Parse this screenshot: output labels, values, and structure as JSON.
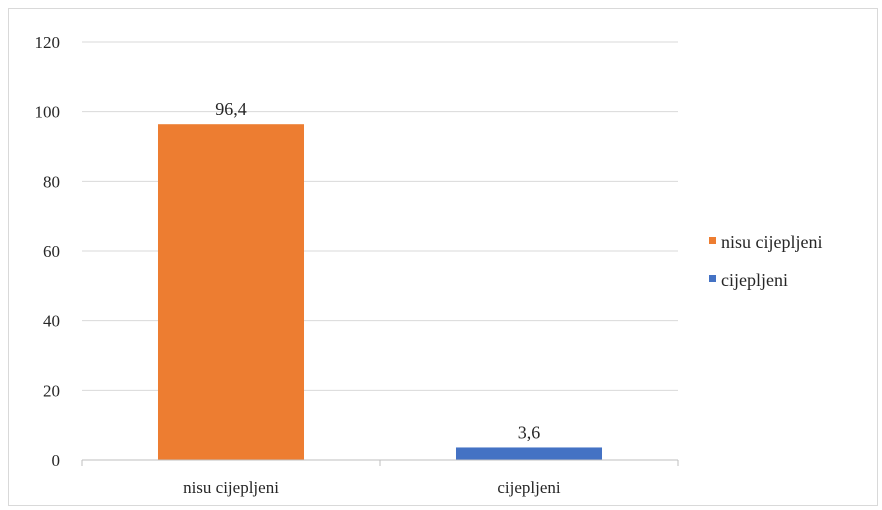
{
  "chart_data": {
    "type": "bar",
    "title": "",
    "xlabel": "",
    "ylabel": "",
    "categories": [
      "nisu cijepljeni",
      "cijepljeni"
    ],
    "values": [
      96.4,
      3.6
    ],
    "value_labels": [
      "96,4",
      "3,6"
    ],
    "colors": [
      "#ed7d31",
      "#4472c4"
    ],
    "ylim": [
      0,
      120
    ],
    "yticks": [
      0,
      20,
      40,
      60,
      80,
      100,
      120
    ],
    "ytick_labels": [
      "0",
      "20",
      "40",
      "60",
      "80",
      "100",
      "120"
    ],
    "grid": true,
    "legend": {
      "placement": "right",
      "entries": [
        {
          "label": "nisu cijepljeni",
          "color": "#ed7d31"
        },
        {
          "label": "cijepljeni",
          "color": "#4472c4"
        }
      ]
    }
  }
}
